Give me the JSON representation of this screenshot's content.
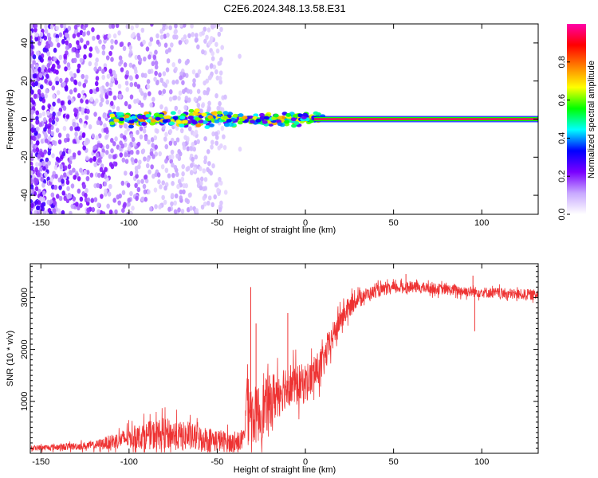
{
  "title": "C2E6.2024.348.13.58.E31",
  "chart_data": [
    {
      "type": "heatmap",
      "title": "C2E6.2024.348.13.58.E31",
      "xlabel": "Height of straight line (km)",
      "ylabel": "Frequency (Hz)",
      "xlim": [
        -156,
        132
      ],
      "ylim": [
        -50,
        50
      ],
      "x_ticks": [
        "-150",
        "-100",
        "-50",
        "0",
        "50",
        "100"
      ],
      "y_ticks": [
        "40",
        "20",
        "0",
        "-20",
        "-40"
      ],
      "colorbar": {
        "label": "Normalized spectral amplitude",
        "range": [
          0,
          1
        ],
        "ticks": [
          "0.0",
          "0.2",
          "0.4",
          "0.6",
          "0.8"
        ],
        "colors": [
          "#ffffff",
          "#c8a8ff",
          "#7a00ff",
          "#0000ff",
          "#00ffff",
          "#00ff00",
          "#ffff00",
          "#ff7f00",
          "#ff0000",
          "#ff00aa"
        ]
      },
      "signal_line": {
        "frequency_hz": 0,
        "from_km": 5,
        "to_km": 132,
        "amplitude": 0.95
      },
      "noise_extent_km": [
        -156,
        -45
      ]
    },
    {
      "type": "line",
      "xlabel": "Height of straight line (km)",
      "ylabel": "SNR (10 * v/v)",
      "xlim": [
        -156,
        132
      ],
      "ylim": [
        0,
        3650
      ],
      "x_ticks": [
        "-150",
        "-100",
        "-50",
        "0",
        "50",
        "100"
      ],
      "y_ticks": [
        "3000",
        "2000",
        "1000"
      ],
      "color": "#ee3333",
      "series": [
        {
          "x": [
            -156,
            -140,
            -120,
            -110,
            -100,
            -90,
            -80,
            -70,
            -60,
            -50,
            -40,
            -35,
            -33,
            -30,
            -25,
            -20,
            -15,
            -10,
            -5,
            0,
            5,
            10,
            15,
            20,
            25,
            30,
            40,
            50,
            60,
            70,
            80,
            90,
            100,
            110,
            120,
            132
          ],
          "y": [
            100,
            120,
            150,
            220,
            300,
            340,
            380,
            330,
            290,
            250,
            200,
            250,
            1200,
            700,
            800,
            1000,
            1200,
            1350,
            1300,
            1350,
            1500,
            1750,
            2200,
            2600,
            2800,
            3000,
            3120,
            3180,
            3200,
            3180,
            3150,
            3120,
            3100,
            3080,
            3060,
            3050
          ],
          "spread": [
            60,
            80,
            100,
            180,
            250,
            330,
            380,
            350,
            320,
            280,
            230,
            260,
            700,
            700,
            700,
            650,
            600,
            550,
            500,
            480,
            450,
            400,
            350,
            300,
            250,
            180,
            150,
            130,
            130,
            130,
            130,
            130,
            130,
            130,
            130,
            130
          ]
        }
      ],
      "spikes": [
        {
          "x": -31,
          "y": 3200
        },
        {
          "x": -28,
          "y": 2500
        },
        {
          "x": -10,
          "y": 2700
        },
        {
          "x": 57,
          "y": 3450
        },
        {
          "x": 95,
          "y": 3420
        },
        {
          "x": 96,
          "y": 2350
        }
      ]
    }
  ]
}
